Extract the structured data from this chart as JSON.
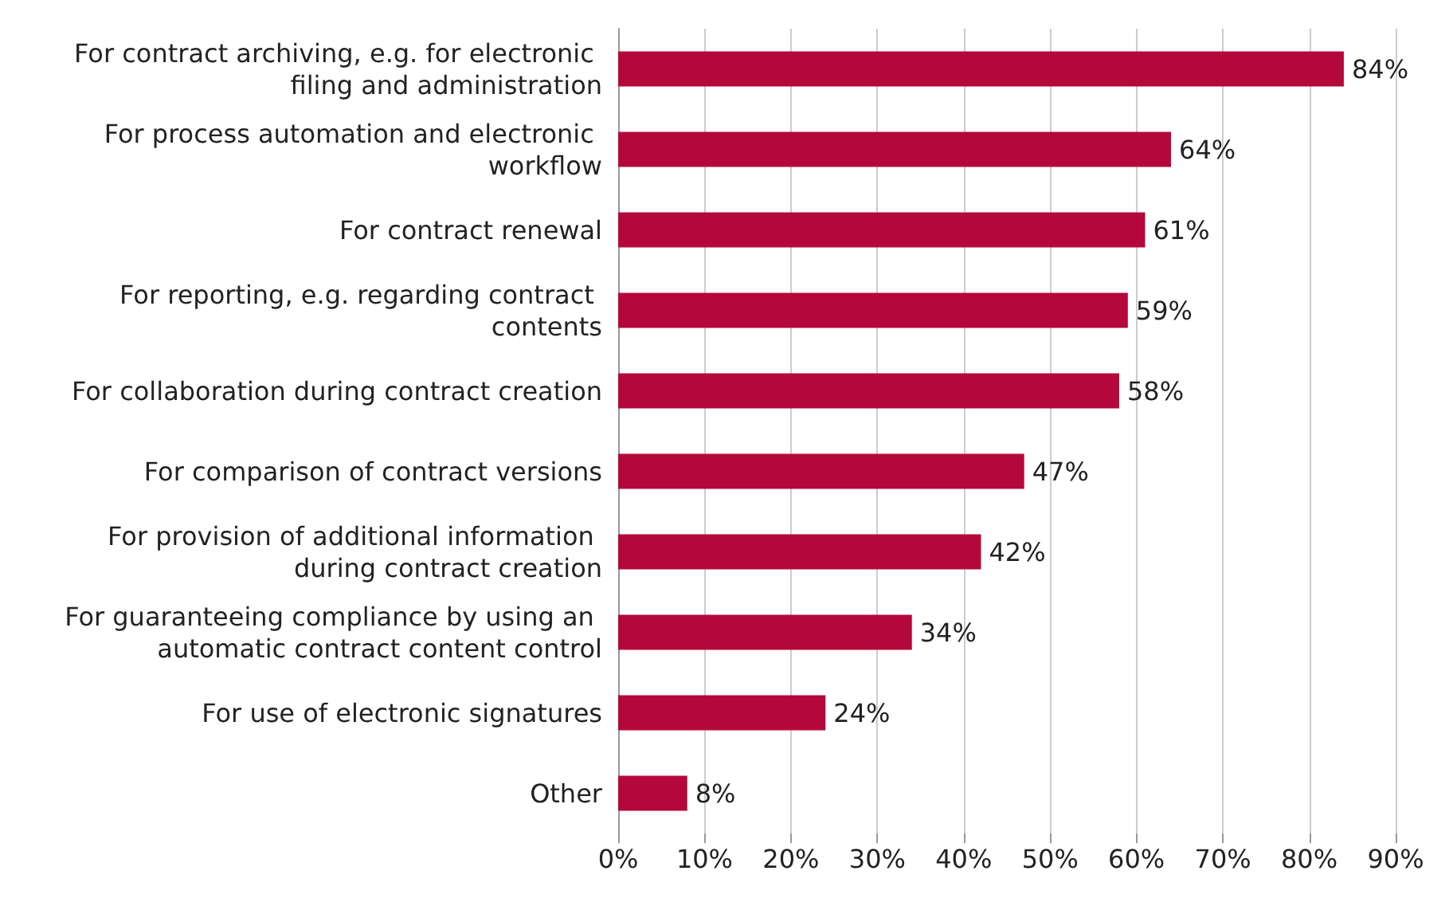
{
  "chart_data": {
    "type": "bar",
    "orientation": "horizontal",
    "categories": [
      "For contract archiving, e.g. for electronic filing and administration",
      "For process automation and electronic workflow",
      "For contract renewal",
      "For reporting, e.g. regarding contract contents",
      "For collaboration during contract creation",
      "For comparison of contract versions",
      "For provision of additional information during contract creation",
      "For guaranteeing compliance by using an automatic contract content control",
      "For use of electronic signatures",
      "Other"
    ],
    "values": [
      84,
      64,
      61,
      59,
      58,
      47,
      42,
      34,
      24,
      8
    ],
    "value_labels": [
      "84%",
      "64%",
      "61%",
      "59%",
      "58%",
      "47%",
      "42%",
      "34%",
      "24%",
      "8%"
    ],
    "color": "#b5083a",
    "xlim": [
      0,
      90
    ],
    "xticks": [
      {
        "value": 0,
        "label": "0%"
      },
      {
        "value": 10,
        "label": "10%"
      },
      {
        "value": 20,
        "label": "20%"
      },
      {
        "value": 30,
        "label": "30%"
      },
      {
        "value": 40,
        "label": "40%"
      },
      {
        "value": 50,
        "label": "50%"
      },
      {
        "value": 60,
        "label": "60%"
      },
      {
        "value": 70,
        "label": "70%"
      },
      {
        "value": 80,
        "label": "80%"
      },
      {
        "value": 90,
        "label": "90%"
      }
    ],
    "grid": "x"
  }
}
